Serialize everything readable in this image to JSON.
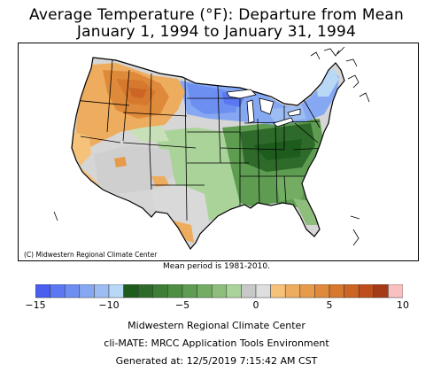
{
  "title": {
    "line1": "Average Temperature (°F): Departure from Mean",
    "line2": "January 1, 1994 to January 31, 1994"
  },
  "map": {
    "credit": "(C) Midwestern Regional Climate Center",
    "mean_period": "Mean period is 1981-2010."
  },
  "legend": {
    "min": -15,
    "max": 10,
    "tick_labels": [
      {
        "value": -15,
        "text": "−15"
      },
      {
        "value": -10,
        "text": "−10"
      },
      {
        "value": -5,
        "text": "−5"
      },
      {
        "value": 0,
        "text": "0"
      },
      {
        "value": 5,
        "text": "5"
      },
      {
        "value": 10,
        "text": "10"
      }
    ],
    "colors": [
      "#4a5ef0",
      "#5b78f2",
      "#6e8ff2",
      "#86a8f2",
      "#9dbcf2",
      "#b9d8f6",
      "#1d5c1d",
      "#2e6b2a",
      "#3d7d36",
      "#4d8e43",
      "#5e9c52",
      "#73ad64",
      "#8ebd7c",
      "#aad39a",
      "#c8c8c8",
      "#dedede",
      "#f6c27a",
      "#eeac5f",
      "#e69a4a",
      "#de8a3a",
      "#d6782e",
      "#cc6424",
      "#bf4e1d",
      "#a53a18",
      "#f9c0c0"
    ]
  },
  "footer": {
    "line1": "Midwestern Regional Climate Center",
    "line2": "cli-MATE: MRCC Application Tools Environment",
    "line3": "Generated at: 12/5/2019 7:15:42 AM CST"
  }
}
